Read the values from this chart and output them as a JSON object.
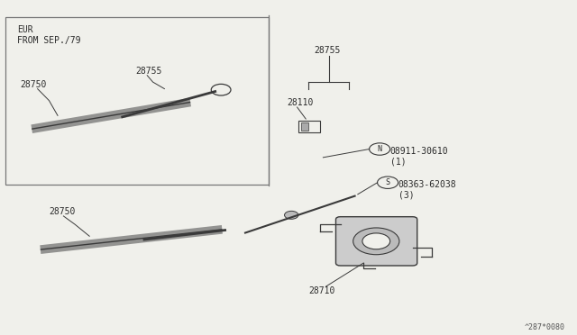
{
  "background_color": "#f0f0eb",
  "line_color": "#3a3a3a",
  "text_color": "#2a2a2a",
  "border_color": "#777777",
  "footer": "^287*0080",
  "labels": {
    "eur_text": "EUR\nFROM SEP./79",
    "28755_top": "28755",
    "28750_top": "28750",
    "28750_bottom": "28750",
    "28755_mid": "28755",
    "28110": "28110",
    "N_label": "08911-30610\n(1)",
    "S_label": "08363-62038\n(3)",
    "28710": "28710"
  },
  "font_size_label": 7,
  "font_size_footer": 6
}
